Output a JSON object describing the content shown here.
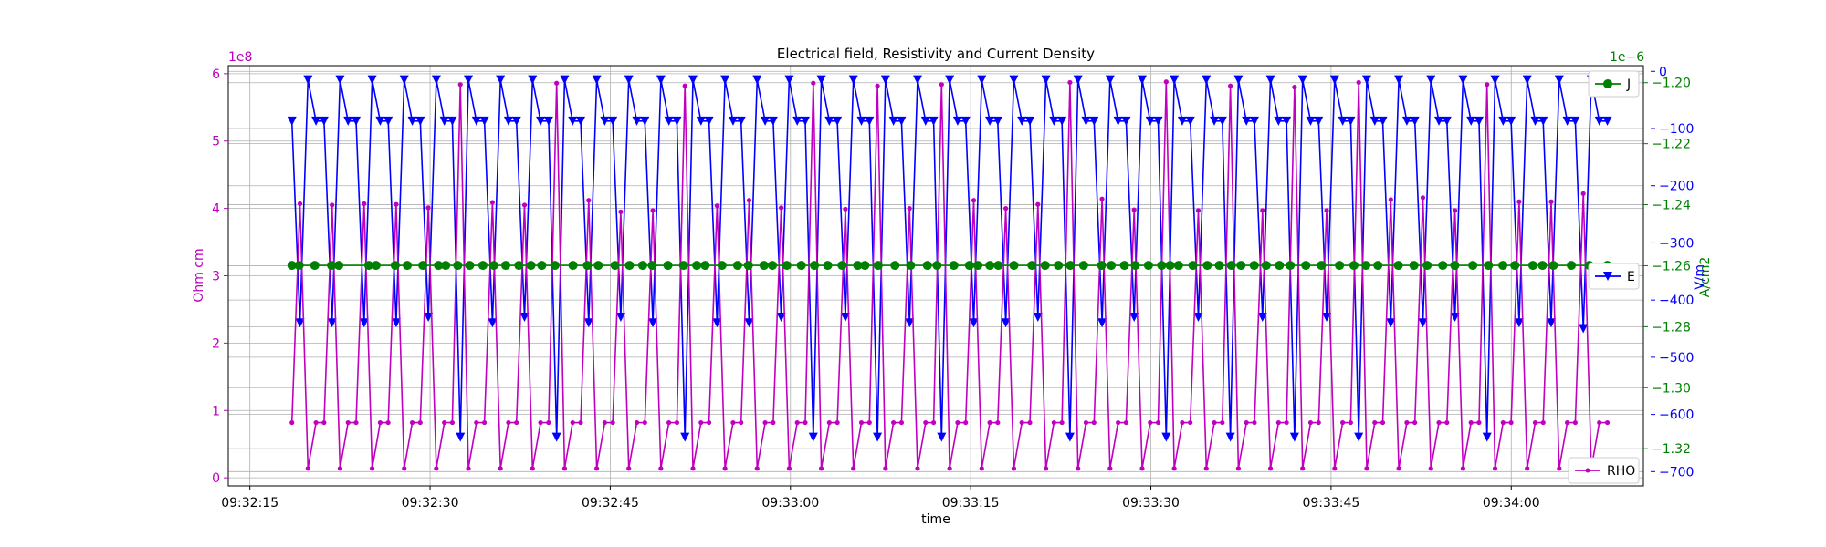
{
  "chart_data": {
    "type": "line",
    "title": "Electrical field, Resistivity and Current Density",
    "xlabel": "time",
    "x_ticks": [
      "09:32:15",
      "09:32:30",
      "09:32:45",
      "09:33:00",
      "09:33:15",
      "09:33:30",
      "09:33:45",
      "09:34:00"
    ],
    "x_tick_seconds": [
      0,
      15,
      30,
      45,
      60,
      75,
      90,
      105
    ],
    "x_range_seconds": [
      -1.8,
      116
    ],
    "axes": {
      "left": {
        "label": "Ohm cm",
        "offset_text": "1e8",
        "ticks": [
          "0",
          "1",
          "2",
          "3",
          "4",
          "5",
          "6"
        ],
        "range": [
          -0.12,
          6.12
        ],
        "color": "#bf00bf"
      },
      "right_inner": {
        "label": "A/cm2",
        "offset_text": "1e−6",
        "ticks": [
          "−1.20",
          "−1.22",
          "−1.24",
          "−1.26",
          "−1.28",
          "−1.30",
          "−1.32"
        ],
        "tick_values": [
          -1.2,
          -1.22,
          -1.24,
          -1.26,
          -1.28,
          -1.3,
          -1.32
        ],
        "range": [
          -1.3322,
          -1.1944
        ],
        "color": "#008000"
      },
      "right_outer": {
        "label": "V/m",
        "ticks": [
          "0",
          "−100",
          "−200",
          "−300",
          "−400",
          "−500",
          "−600",
          "−700"
        ],
        "tick_values": [
          0,
          -100,
          -200,
          -300,
          -400,
          -500,
          -600,
          -700
        ],
        "range": [
          -725,
          10
        ],
        "color": "#0000ff"
      }
    },
    "series": [
      {
        "name": "RHO",
        "axis": "left",
        "color": "#bf00bf",
        "marker": "dot",
        "legend_position": "bottom-right",
        "start_seconds": 3.5,
        "step_seconds": 0.6,
        "pattern": [
          0.82,
          4.07,
          0.14,
          0.82
        ],
        "peaks": [
          4.07,
          4.05,
          4.07,
          4.06,
          4.01,
          5.84,
          4.09,
          4.05,
          5.86,
          4.12,
          3.95,
          3.97,
          5.82,
          4.04,
          4.12,
          4.01,
          5.86,
          3.99,
          5.82,
          4.0,
          5.84,
          4.12,
          4.0,
          4.06,
          5.87,
          4.14,
          3.98,
          5.88,
          3.97,
          5.82,
          3.97,
          5.8,
          3.97,
          5.87,
          4.13,
          4.16,
          3.97,
          5.84,
          4.1,
          4.1,
          4.22
        ],
        "end_value": 0.82
      },
      {
        "name": "E",
        "axis": "right_outer",
        "color": "#0000ff",
        "marker": "triangle-down",
        "legend_position": "center-right",
        "pattern": [
          -87,
          -440,
          -15,
          -87
        ],
        "troughs": [
          -440,
          -440,
          -440,
          -440,
          -430,
          -640,
          -440,
          -430,
          -640,
          -440,
          -430,
          -440,
          -640,
          -440,
          -440,
          -430,
          -640,
          -430,
          -640,
          -440,
          -640,
          -440,
          -440,
          -430,
          -640,
          -440,
          -430,
          -640,
          -430,
          -640,
          -430,
          -640,
          -430,
          -640,
          -440,
          -440,
          -430,
          -640,
          -440,
          -440,
          -450
        ],
        "end_value": -87
      },
      {
        "name": "J",
        "axis": "right_inner",
        "color": "#008000",
        "marker": "circle",
        "legend_position": "top-right",
        "value": -1.2599,
        "points_seconds": [
          3.5,
          4.1,
          5.4,
          6.8,
          7.4,
          9.9,
          10.5,
          12.1,
          13.1,
          14.4,
          15.7,
          16.3,
          17.3,
          18.3,
          19.4,
          20.3,
          21.3,
          22.4,
          23.4,
          24.3,
          25.4,
          26.9,
          28.1,
          29.0,
          30.4,
          31.6,
          32.7,
          33.5,
          34.8,
          36.1,
          37.2,
          37.9,
          39.3,
          40.6,
          41.5,
          42.8,
          43.5,
          44.7,
          45.9,
          47.0,
          48.1,
          49.3,
          50.6,
          51.2,
          52.3,
          53.7,
          55.0,
          56.4,
          57.2,
          58.6,
          59.9,
          60.6,
          61.6,
          62.3,
          63.6,
          65.1,
          66.2,
          67.3,
          68.3,
          69.4,
          70.9,
          71.7,
          72.8,
          73.7,
          74.8,
          75.9,
          76.6,
          77.3,
          78.5,
          79.7,
          80.7,
          81.7,
          82.5,
          83.6,
          84.6,
          85.7,
          86.6,
          87.9,
          89.2,
          90.7,
          91.9,
          92.9,
          93.9,
          95.6,
          96.9,
          98.0,
          99.3,
          100.3,
          101.8,
          103.1,
          104.3,
          105.3,
          106.8,
          107.6,
          108.5,
          110.0,
          111.5,
          113.0
        ]
      }
    ]
  }
}
